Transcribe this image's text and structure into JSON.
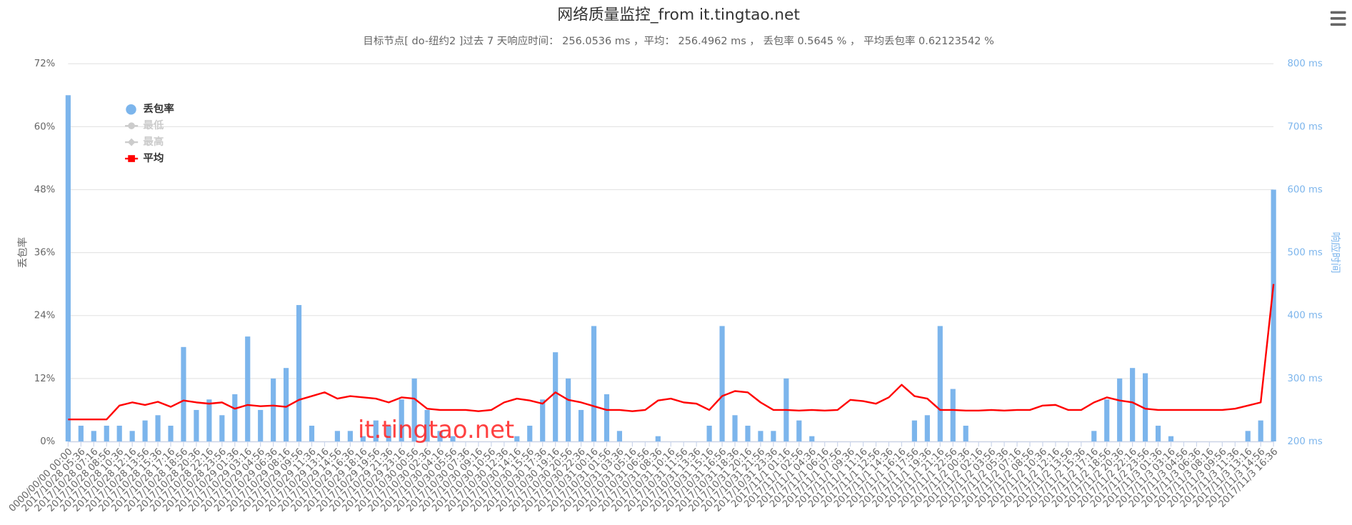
{
  "chart_data": {
    "type": "combo",
    "title": "网络质量监控_from it.tingtao.net",
    "subtitle": "目标节点[ do-纽约2 ]过去 7 天响应时间： 256.0536 ms ，平均： 256.4962 ms ， 丢包率 0.5645 % ， 平均丢包率 0.62123542 %",
    "watermark": "it.tingtao.net",
    "y_label": "丢包率",
    "y2_label": "响应时间",
    "grid": true,
    "legend": "upper left",
    "ylim": [
      0,
      72
    ],
    "yticks": [
      {
        "value": 0,
        "label": "0%"
      },
      {
        "value": 12,
        "label": "12%"
      },
      {
        "value": 24,
        "label": "24%"
      },
      {
        "value": 36,
        "label": "36%"
      },
      {
        "value": 48,
        "label": "48%"
      },
      {
        "value": 60,
        "label": "60%"
      },
      {
        "value": 72,
        "label": "72%"
      }
    ],
    "y2lim": [
      200,
      800
    ],
    "y2ticks": [
      {
        "value": 200,
        "label": "200 ms"
      },
      {
        "value": 300,
        "label": "300 ms"
      },
      {
        "value": 400,
        "label": "400 ms"
      },
      {
        "value": 500,
        "label": "500 ms"
      },
      {
        "value": 600,
        "label": "600 ms"
      },
      {
        "value": 700,
        "label": "700 ms"
      },
      {
        "value": 800,
        "label": "800 ms"
      }
    ],
    "categories": [
      "0000/00/00 00:00",
      "2017/10/28 05:36",
      "2017/10/28 07:16",
      "2017/10/28 08:56",
      "2017/10/28 10:36",
      "2017/10/28 12:16",
      "2017/10/28 13:56",
      "2017/10/28 15:36",
      "2017/10/28 17:16",
      "2017/10/28 18:56",
      "2017/10/28 20:36",
      "2017/10/28 22:16",
      "2017/10/28 23:56",
      "2017/10/29 01:36",
      "2017/10/29 03:16",
      "2017/10/29 04:56",
      "2017/10/29 06:36",
      "2017/10/29 08:16",
      "2017/10/29 09:56",
      "2017/10/29 11:36",
      "2017/10/29 13:16",
      "2017/10/29 14:56",
      "2017/10/29 16:36",
      "2017/10/29 18:16",
      "2017/10/29 19:56",
      "2017/10/29 21:36",
      "2017/10/29 23:16",
      "2017/10/30 00:56",
      "2017/10/30 02:36",
      "2017/10/30 04:16",
      "2017/10/30 05:56",
      "2017/10/30 07:36",
      "2017/10/30 09:16",
      "2017/10/30 10:56",
      "2017/10/30 12:36",
      "2017/10/30 14:16",
      "2017/10/30 15:56",
      "2017/10/30 17:36",
      "2017/10/30 19:16",
      "2017/10/30 20:56",
      "2017/10/30 22:36",
      "2017/10/31 00:16",
      "2017/10/31 01:56",
      "2017/10/31 03:36",
      "2017/10/31 05:16",
      "2017/10/31 06:56",
      "2017/10/31 08:36",
      "2017/10/31 10:16",
      "2017/10/31 11:56",
      "2017/10/31 13:36",
      "2017/10/31 15:16",
      "2017/10/31 16:56",
      "2017/10/31 18:36",
      "2017/10/31 20:16",
      "2017/10/31 21:56",
      "2017/10/31 23:36",
      "2017/11/1 01:16",
      "2017/11/1 02:56",
      "2017/11/1 04:36",
      "2017/11/1 06:16",
      "2017/11/1 07:56",
      "2017/11/1 09:36",
      "2017/11/1 11:16",
      "2017/11/1 12:56",
      "2017/11/1 14:36",
      "2017/11/1 16:16",
      "2017/11/1 17:56",
      "2017/11/1 19:36",
      "2017/11/1 21:16",
      "2017/11/1 22:56",
      "2017/11/2 00:36",
      "2017/11/2 02:16",
      "2017/11/2 03:56",
      "2017/11/2 05:36",
      "2017/11/2 07:16",
      "2017/11/2 08:56",
      "2017/11/2 10:36",
      "2017/11/2 12:16",
      "2017/11/2 13:56",
      "2017/11/2 15:36",
      "2017/11/2 17:16",
      "2017/11/2 18:56",
      "2017/11/2 20:36",
      "2017/11/2 22:16",
      "2017/11/2 23:56",
      "2017/11/3 01:36",
      "2017/11/3 03:16",
      "2017/11/3 04:56",
      "2017/11/3 06:36",
      "2017/11/3 08:16",
      "2017/11/3 09:56",
      "2017/11/3 11:36",
      "2017/11/3 13:16",
      "2017/11/3 14:56",
      "2017/11/3 16:36"
    ],
    "series": [
      {
        "name": "丢包率",
        "type": "bar",
        "axis": "y",
        "color": "#7cb5ec",
        "visible": true,
        "values": [
          66,
          3,
          2,
          3,
          3,
          2,
          4,
          5,
          3,
          18,
          6,
          8,
          5,
          9,
          20,
          6,
          12,
          14,
          26,
          3,
          0,
          2,
          2,
          1,
          4,
          3,
          8,
          12,
          6,
          2,
          1,
          0,
          0,
          0,
          0,
          1,
          3,
          8,
          17,
          12,
          6,
          22,
          9,
          2,
          0,
          0,
          1,
          0,
          0,
          0,
          3,
          22,
          5,
          3,
          2,
          2,
          12,
          4,
          1,
          0,
          0,
          0,
          0,
          0,
          0,
          0,
          4,
          5,
          22,
          10,
          3,
          0,
          0,
          0,
          0,
          0,
          0,
          0,
          0,
          0,
          2,
          8,
          12,
          14,
          13,
          3,
          1,
          0,
          0,
          0,
          0,
          0,
          2,
          4,
          48
        ]
      },
      {
        "name": "最低",
        "type": "line",
        "axis": "y2",
        "color": "#cccccc",
        "visible": false,
        "marker": "circle"
      },
      {
        "name": "最高",
        "type": "line",
        "axis": "y2",
        "color": "#cccccc",
        "visible": false,
        "marker": "diamond"
      },
      {
        "name": "平均",
        "type": "line",
        "axis": "y2",
        "color": "#ff0000",
        "visible": true,
        "marker": "square",
        "values": [
          235,
          235,
          235,
          235,
          257,
          262,
          258,
          263,
          255,
          265,
          262,
          260,
          262,
          252,
          258,
          256,
          257,
          255,
          266,
          272,
          278,
          268,
          272,
          270,
          268,
          262,
          270,
          268,
          252,
          250,
          250,
          250,
          248,
          250,
          262,
          268,
          265,
          260,
          278,
          266,
          262,
          256,
          250,
          250,
          248,
          250,
          265,
          268,
          262,
          260,
          250,
          272,
          280,
          278,
          262,
          250,
          250,
          249,
          250,
          249,
          250,
          266,
          264,
          260,
          270,
          290,
          272,
          268,
          250,
          250,
          249,
          249,
          250,
          249,
          250,
          250,
          257,
          258,
          250,
          250,
          262,
          270,
          265,
          262,
          252,
          250,
          250,
          250,
          250,
          250,
          250,
          252,
          257,
          262,
          450
        ]
      }
    ]
  }
}
